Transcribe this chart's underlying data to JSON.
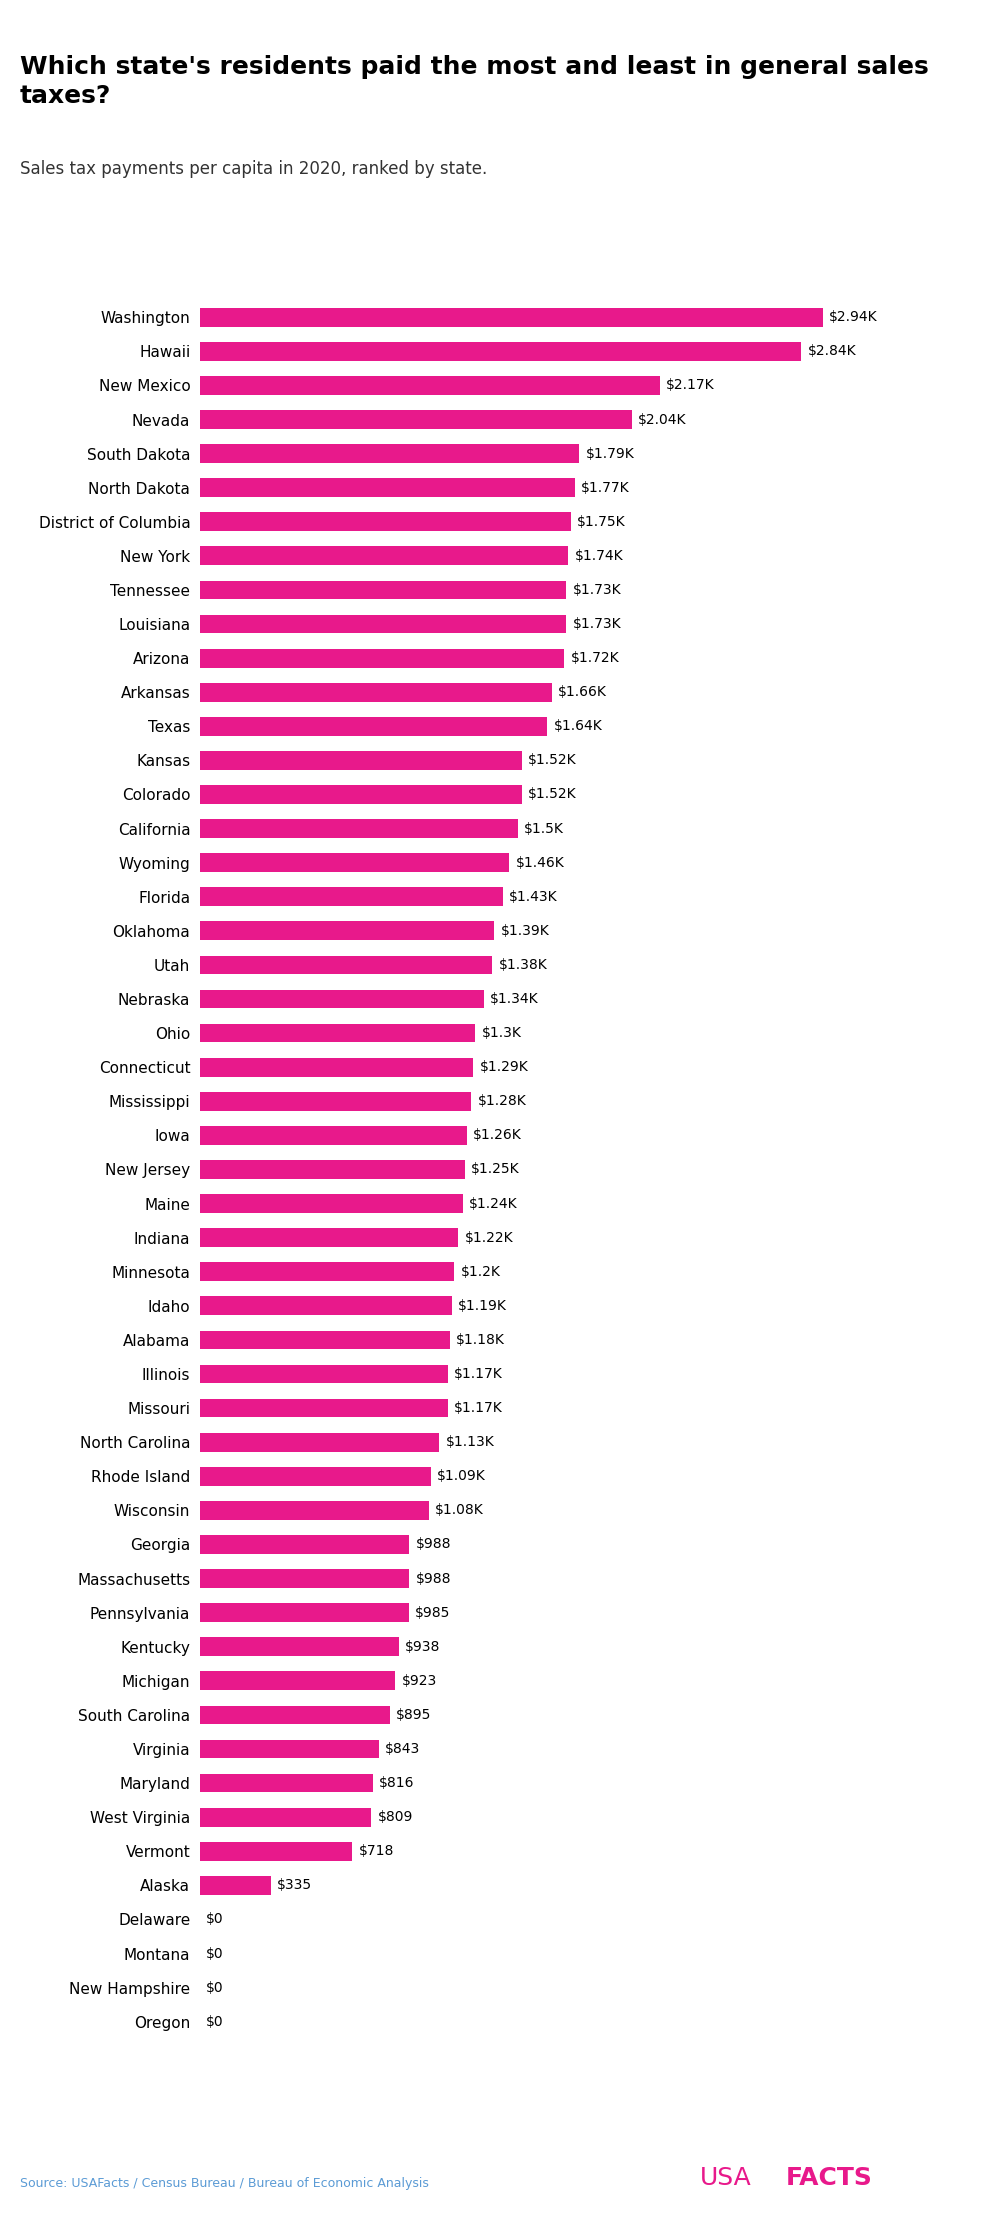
{
  "title": "Which state's residents paid the most and least in general sales\ntaxes?",
  "subtitle": "Sales tax payments per capita in 2020, ranked by state.",
  "source": "Source: USAFacts / Census Bureau / Bureau of Economic Analysis",
  "bar_color": "#E8198B",
  "background_color": "#FFFFFF",
  "text_color": "#000000",
  "source_color": "#5B9BD5",
  "usafacts_color": "#E8198B",
  "states": [
    "Washington",
    "Hawaii",
    "New Mexico",
    "Nevada",
    "South Dakota",
    "North Dakota",
    "District of Columbia",
    "New York",
    "Tennessee",
    "Louisiana",
    "Arizona",
    "Arkansas",
    "Texas",
    "Kansas",
    "Colorado",
    "California",
    "Wyoming",
    "Florida",
    "Oklahoma",
    "Utah",
    "Nebraska",
    "Ohio",
    "Connecticut",
    "Mississippi",
    "Iowa",
    "New Jersey",
    "Maine",
    "Indiana",
    "Minnesota",
    "Idaho",
    "Alabama",
    "Illinois",
    "Missouri",
    "North Carolina",
    "Rhode Island",
    "Wisconsin",
    "Georgia",
    "Massachusetts",
    "Pennsylvania",
    "Kentucky",
    "Michigan",
    "South Carolina",
    "Virginia",
    "Maryland",
    "West Virginia",
    "Vermont",
    "Alaska",
    "Delaware",
    "Montana",
    "New Hampshire",
    "Oregon"
  ],
  "values": [
    2940,
    2840,
    2170,
    2040,
    1790,
    1770,
    1750,
    1740,
    1730,
    1730,
    1720,
    1660,
    1640,
    1520,
    1520,
    1500,
    1460,
    1430,
    1390,
    1380,
    1340,
    1300,
    1290,
    1280,
    1260,
    1250,
    1240,
    1220,
    1200,
    1190,
    1180,
    1170,
    1170,
    1130,
    1090,
    1080,
    988,
    988,
    985,
    938,
    923,
    895,
    843,
    816,
    809,
    718,
    335,
    0,
    0,
    0,
    0
  ],
  "labels": [
    "$2.94K",
    "$2.84K",
    "$2.17K",
    "$2.04K",
    "$1.79K",
    "$1.77K",
    "$1.75K",
    "$1.74K",
    "$1.73K",
    "$1.73K",
    "$1.72K",
    "$1.66K",
    "$1.64K",
    "$1.52K",
    "$1.52K",
    "$1.5K",
    "$1.46K",
    "$1.43K",
    "$1.39K",
    "$1.38K",
    "$1.34K",
    "$1.3K",
    "$1.29K",
    "$1.28K",
    "$1.26K",
    "$1.25K",
    "$1.24K",
    "$1.22K",
    "$1.2K",
    "$1.19K",
    "$1.18K",
    "$1.17K",
    "$1.17K",
    "$1.13K",
    "$1.09K",
    "$1.08K",
    "$988",
    "$988",
    "$985",
    "$938",
    "$923",
    "$895",
    "$843",
    "$816",
    "$809",
    "$718",
    "$335",
    "$0",
    "$0",
    "$0",
    "$0"
  ],
  "figsize": [
    10,
    22.17
  ],
  "dpi": 100,
  "xlim": [
    0,
    3400
  ],
  "bar_height": 0.55,
  "label_fontsize": 10,
  "ytick_fontsize": 11,
  "title_fontsize": 18,
  "subtitle_fontsize": 12
}
